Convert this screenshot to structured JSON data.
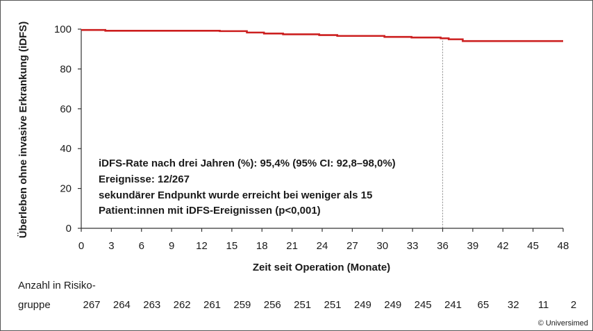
{
  "chart_data": {
    "type": "line",
    "ylabel": "Überleben ohne invasive Erkrankung (iDFS)",
    "xlabel": "Zeit seit Operation (Monate)",
    "xlim": [
      0,
      48
    ],
    "ylim": [
      0,
      100
    ],
    "x_ticks": [
      0,
      3,
      6,
      9,
      12,
      15,
      18,
      21,
      24,
      27,
      30,
      33,
      36,
      39,
      42,
      45,
      48
    ],
    "y_ticks": [
      0,
      20,
      40,
      60,
      80,
      100
    ],
    "grid": false,
    "reference_line_x": 36,
    "line_color": "#cc1f1f",
    "series": [
      {
        "steps": [
          [
            0,
            99.6
          ],
          [
            2.4,
            99.2
          ],
          [
            13.8,
            99.0
          ],
          [
            16.5,
            98.3
          ],
          [
            18.2,
            97.8
          ],
          [
            20.1,
            97.4
          ],
          [
            23.7,
            97.0
          ],
          [
            25.5,
            96.6
          ],
          [
            30.2,
            96.1
          ],
          [
            32.9,
            95.8
          ],
          [
            35.8,
            95.4
          ],
          [
            36.6,
            94.9
          ],
          [
            38.0,
            94.0
          ],
          [
            48,
            94.0
          ]
        ]
      }
    ],
    "annotation": [
      "iDFS-Rate nach drei Jahren (%): 95,4% (95% CI: 92,8–98,0%)",
      "Ereignisse: 12/267",
      "sekundärer Endpunkt wurde erreicht bei weniger als 15",
      "Patient:innen mit iDFS-Ereignissen (p<0,001)"
    ],
    "at_risk": {
      "label_line1": "Anzahl in Risiko-",
      "label_line2": "gruppe",
      "values": [
        "267",
        "264",
        "263",
        "262",
        "261",
        "259",
        "256",
        "251",
        "251",
        "249",
        "249",
        "245",
        "241",
        "65",
        "32",
        "11",
        "2"
      ]
    }
  },
  "credit": "© Universimed"
}
